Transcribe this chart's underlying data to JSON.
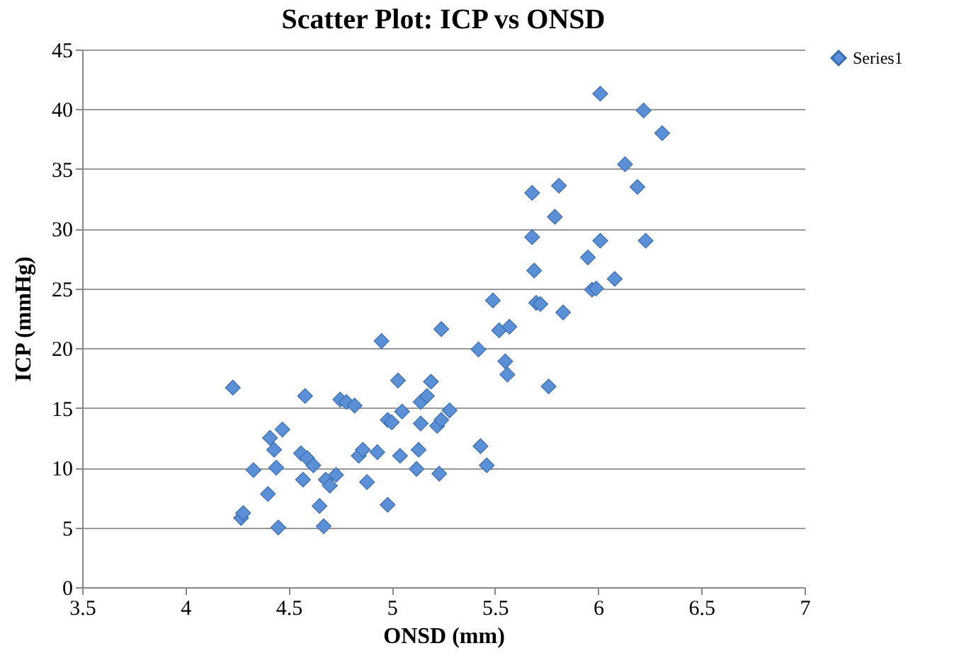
{
  "chart_data": {
    "type": "scatter",
    "title": "Scatter Plot: ICP vs ONSD",
    "xlabel": "ONSD (mm)",
    "ylabel": "ICP (mmHg)",
    "xlim": [
      3.5,
      7
    ],
    "xticks": [
      3.5,
      4,
      4.5,
      5,
      5.5,
      6,
      6.5,
      7
    ],
    "ylim": [
      0,
      45
    ],
    "yticks": [
      0,
      5,
      10,
      15,
      20,
      25,
      30,
      35,
      40,
      45
    ],
    "grid": "y",
    "legend": "right",
    "marker": "diamond",
    "series": [
      {
        "name": "Series1",
        "color": "#5b8fd6",
        "x": [
          4.23,
          4.27,
          4.28,
          4.33,
          4.4,
          4.41,
          4.43,
          4.44,
          4.45,
          4.47,
          4.56,
          4.57,
          4.58,
          4.59,
          4.62,
          4.65,
          4.67,
          4.68,
          4.7,
          4.73,
          4.75,
          4.78,
          4.82,
          4.84,
          4.86,
          4.88,
          4.93,
          4.95,
          4.98,
          4.98,
          5,
          5.03,
          5.04,
          5.05,
          5.12,
          5.13,
          5.14,
          5.14,
          5.17,
          5.19,
          5.22,
          5.23,
          5.24,
          5.24,
          5.28,
          5.42,
          5.43,
          5.46,
          5.49,
          5.52,
          5.55,
          5.56,
          5.57,
          5.68,
          5.68,
          5.69,
          5.7,
          5.72,
          5.76,
          5.79,
          5.81,
          5.83,
          5.95,
          5.97,
          5.99,
          6.01,
          6.01,
          6.08,
          6.13,
          6.19,
          6.22,
          6.23,
          6.31
        ],
        "values": [
          16.7,
          5.8,
          6.2,
          9.8,
          7.8,
          12.5,
          11.5,
          10,
          5,
          13.2,
          11.2,
          9,
          16,
          10.8,
          10.2,
          6.8,
          5.1,
          9,
          8.5,
          9.4,
          15.7,
          15.5,
          15.2,
          11,
          11.5,
          8.8,
          11.3,
          20.6,
          6.9,
          14,
          13.8,
          17.3,
          11,
          14.7,
          9.9,
          11.5,
          13.7,
          15.5,
          16,
          17.2,
          13.5,
          9.5,
          14,
          21.6,
          14.8,
          19.9,
          11.8,
          10.2,
          24,
          21.5,
          18.9,
          17.8,
          21.8,
          33,
          29.3,
          26.5,
          23.8,
          23.7,
          16.8,
          31,
          33.6,
          23,
          27.6,
          24.9,
          25,
          29,
          41.3,
          25.8,
          35.4,
          33.5,
          39.9,
          29,
          38
        ]
      }
    ]
  }
}
